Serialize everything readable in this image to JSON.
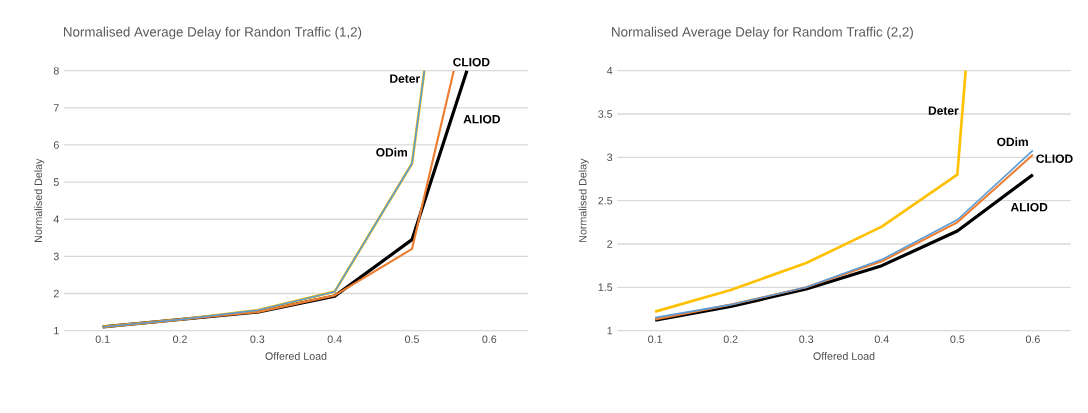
{
  "chart_data": [
    {
      "type": "line",
      "title": "Normalised Average Delay for Randon Traffic (1,2)",
      "xlabel": "Offered Load",
      "ylabel": "Normalised Delay",
      "xlim": [
        0.05,
        0.65
      ],
      "xticks": [
        0.1,
        0.2,
        0.3,
        0.4,
        0.5,
        0.6
      ],
      "ylim": [
        1,
        8
      ],
      "yticks": [
        1,
        2,
        3,
        4,
        5,
        6,
        7,
        8
      ],
      "grid": "y",
      "legend": false,
      "series": [
        {
          "name": "ODim",
          "color": "#5b9bd5",
          "x": [
            0.1,
            0.2,
            0.3,
            0.4,
            0.5,
            0.516
          ],
          "values": [
            1.1,
            1.3,
            1.55,
            2.05,
            5.5,
            8
          ]
        },
        {
          "name": "CLIOD",
          "color": "#ed7d31",
          "x": [
            0.1,
            0.2,
            0.3,
            0.4,
            0.5,
            0.554
          ],
          "values": [
            1.1,
            1.3,
            1.5,
            1.95,
            3.2,
            8
          ]
        },
        {
          "name": "Deter",
          "color": "#ffc000",
          "x": [
            0.1,
            0.2,
            0.3,
            0.4,
            0.5,
            0.516
          ],
          "values": [
            1.1,
            1.3,
            1.55,
            2.05,
            5.5,
            8
          ]
        },
        {
          "name": "ALIOD",
          "color": "#000000",
          "x": [
            0.1,
            0.2,
            0.3,
            0.4,
            0.5,
            0.571
          ],
          "values": [
            1.1,
            1.3,
            1.5,
            1.93,
            3.45,
            8
          ]
        }
      ]
    },
    {
      "type": "line",
      "title": "Normalised Average Delay for Random Traffic (2,2)",
      "xlabel": "Offered Load",
      "ylabel": "Normalised Delay",
      "xlim": [
        0.05,
        0.65
      ],
      "xticks": [
        0.1,
        0.2,
        0.3,
        0.4,
        0.5,
        0.6
      ],
      "ylim": [
        1,
        4
      ],
      "yticks": [
        1,
        1.5,
        2,
        2.5,
        3,
        3.5,
        4
      ],
      "grid": "y",
      "legend": false,
      "series": [
        {
          "name": "ODim",
          "color": "#5b9bd5",
          "x": [
            0.1,
            0.2,
            0.3,
            0.4,
            0.5,
            0.6
          ],
          "values": [
            1.15,
            1.3,
            1.5,
            1.82,
            2.28,
            3.08
          ]
        },
        {
          "name": "CLIOD",
          "color": "#ed7d31",
          "x": [
            0.1,
            0.2,
            0.3,
            0.4,
            0.5,
            0.6
          ],
          "values": [
            1.13,
            1.3,
            1.5,
            1.8,
            2.25,
            3.03
          ]
        },
        {
          "name": "Deter",
          "color": "#ffc000",
          "x": [
            0.1,
            0.2,
            0.3,
            0.4,
            0.5,
            0.511
          ],
          "values": [
            1.22,
            1.47,
            1.78,
            2.2,
            2.8,
            4
          ]
        },
        {
          "name": "ALIOD",
          "color": "#000000",
          "x": [
            0.1,
            0.2,
            0.3,
            0.4,
            0.5,
            0.6
          ],
          "values": [
            1.12,
            1.28,
            1.48,
            1.75,
            2.15,
            2.8
          ]
        }
      ]
    }
  ]
}
